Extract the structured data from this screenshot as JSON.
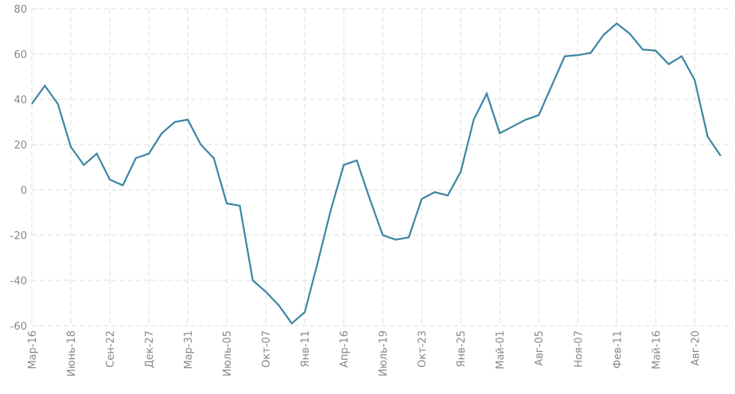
{
  "chart_data": {
    "type": "line",
    "categories": [
      "Мар-16",
      null,
      null,
      "Июнь-18",
      null,
      null,
      "Сен-22",
      null,
      null,
      "Дек-27",
      null,
      null,
      "Мар-31",
      null,
      null,
      "Июль-05",
      null,
      null,
      "Окт-07",
      null,
      null,
      "Янв-11",
      null,
      null,
      "Апр-16",
      null,
      null,
      "Июль-19",
      null,
      null,
      "Окт-23",
      null,
      null,
      "Янв-25",
      null,
      null,
      "Май-01",
      null,
      null,
      "Авг-05",
      null,
      null,
      "Ноя-07",
      null,
      null,
      "Фев-11",
      null,
      null,
      "Май-16",
      null,
      null,
      "Авг-20",
      null,
      null
    ],
    "series": [
      {
        "color": "#3d85a5",
        "values": [
          38,
          46,
          38,
          19,
          11,
          16,
          4.5,
          2,
          14,
          16,
          25,
          30,
          31,
          20,
          14,
          -6,
          -7,
          -40,
          -45,
          -51,
          -59,
          -54,
          -32,
          -9,
          11,
          13,
          -4,
          -20,
          -22,
          -21,
          -4,
          -1,
          -2.5,
          8,
          31,
          42.5,
          25,
          28,
          31,
          33,
          46,
          59,
          59.5,
          60.5,
          68.5,
          73.5,
          69,
          62,
          61.5,
          55.5,
          59,
          48.5,
          23.5,
          15
        ]
      }
    ],
    "ylim": [
      -60,
      80
    ],
    "yticks": [
      -60,
      -40,
      -20,
      0,
      20,
      40,
      60,
      80
    ],
    "grid": true
  }
}
